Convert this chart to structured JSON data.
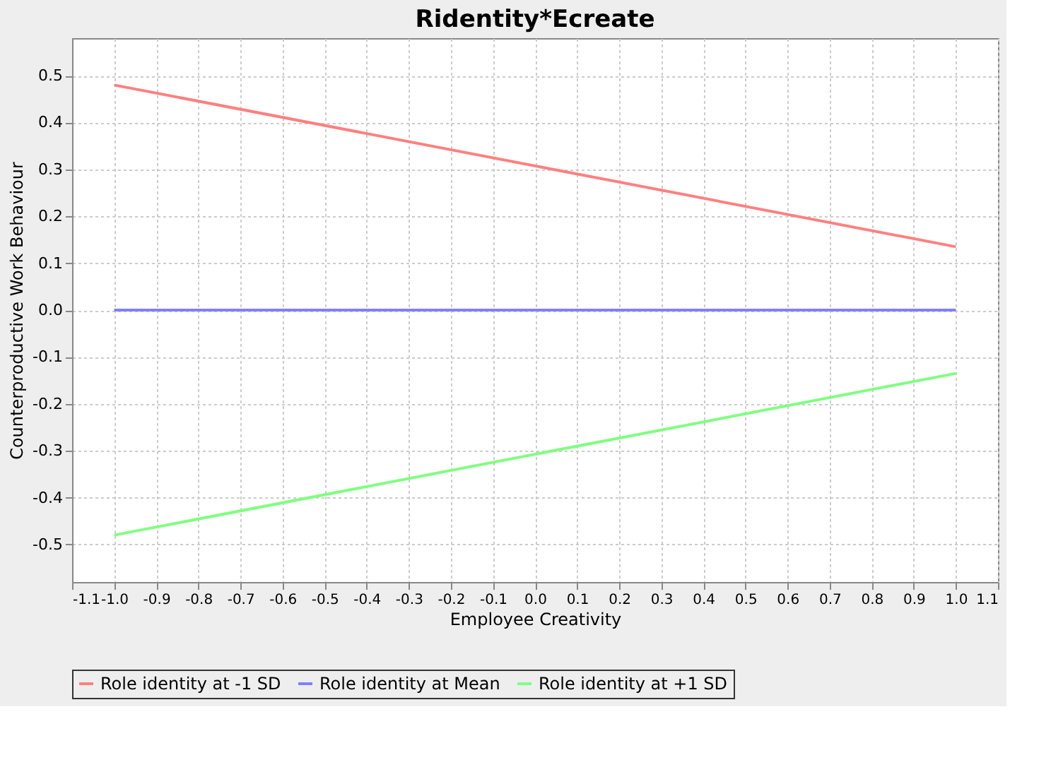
{
  "chart_data": {
    "type": "line",
    "title": "Ridentity*Ecreate",
    "xlabel": "Employee Creativity",
    "ylabel": "Counterproductive Work Behaviour",
    "x": [
      -1.0,
      1.0
    ],
    "series": [
      {
        "name": "Role identity at -1 SD",
        "color": "#ff8080",
        "values": [
          0.48,
          0.135
        ]
      },
      {
        "name": "Role identity at Mean",
        "color": "#8080ff",
        "values": [
          0.0,
          0.0
        ]
      },
      {
        "name": "Role identity at +1 SD",
        "color": "#80ff80",
        "values": [
          -0.48,
          -0.135
        ]
      }
    ],
    "xlim": [
      -1.1,
      1.1
    ],
    "xticks": [
      -1.1,
      {
        "value": -1,
        "label": "-1.0"
      },
      -0.9,
      -0.8,
      -0.7,
      -0.6,
      -0.5,
      -0.4,
      -0.3,
      -0.2,
      -0.1,
      {
        "value": 0,
        "label": "0.0"
      },
      0.1,
      0.2,
      0.3,
      0.4,
      0.5,
      0.6,
      0.7,
      0.8,
      0.9,
      {
        "value": 1,
        "label": "1.0"
      },
      1.1
    ],
    "ylim": [
      -0.58,
      0.58
    ],
    "yticks": [
      -0.5,
      -0.4,
      -0.3,
      -0.2,
      -0.1,
      {
        "value": 0,
        "label": "0.0"
      },
      0.1,
      0.2,
      0.3,
      0.4,
      0.5
    ],
    "grid": true,
    "legend": "bottom",
    "marker": "none",
    "line_style": "solid"
  }
}
